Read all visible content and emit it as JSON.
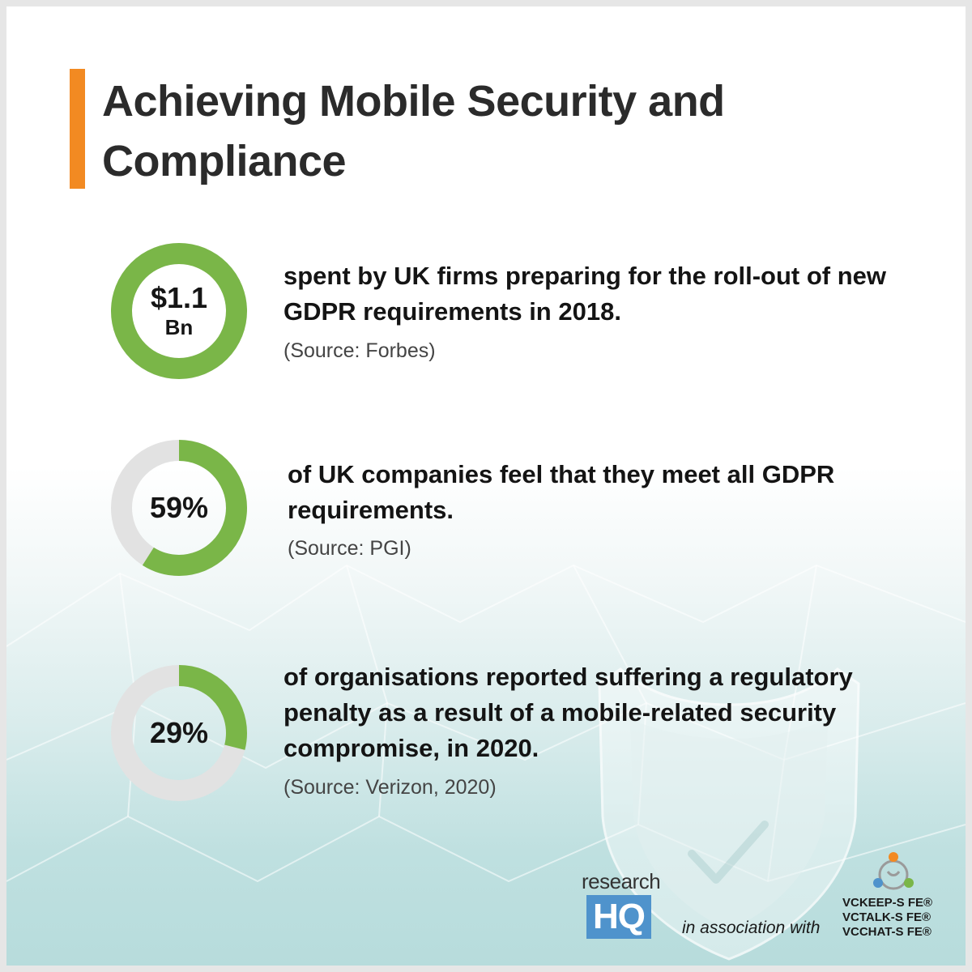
{
  "title": "Achieving Mobile Security and Compliance",
  "colors": {
    "accent": "#f28a22",
    "ring_fill": "#7ab648",
    "ring_track": "#e2e2e2",
    "brand_blue": "#4f93cc"
  },
  "stats": [
    {
      "value_line1": "$1.1",
      "value_line2": "Bn",
      "fraction": 1.0,
      "text": "spent by UK firms preparing for the roll-out of new GDPR requirements in 2018.",
      "source": "(Source: Forbes)"
    },
    {
      "value_line1": "59%",
      "value_line2": "",
      "fraction": 0.59,
      "text": "of UK companies feel that they meet all GDPR requirements.",
      "source": "(Source: PGI)"
    },
    {
      "value_line1": "29%",
      "value_line2": "",
      "fraction": 0.29,
      "text": "of organisations reported suffering a regulatory penalty as a result of a mobile-related security compromise, in 2020.",
      "source": "(Source: Verizon, 2020)"
    }
  ],
  "footer": {
    "brand_small": "research",
    "brand_box": "HQ",
    "association": "in association with",
    "partners": [
      "VCKEEP-S FE®",
      "VCTALK-S FE®",
      "VCCHAT-S FE®"
    ],
    "partner_logo_icon": "people-circle-logo-icon",
    "background_icon": "shield-check-icon"
  }
}
